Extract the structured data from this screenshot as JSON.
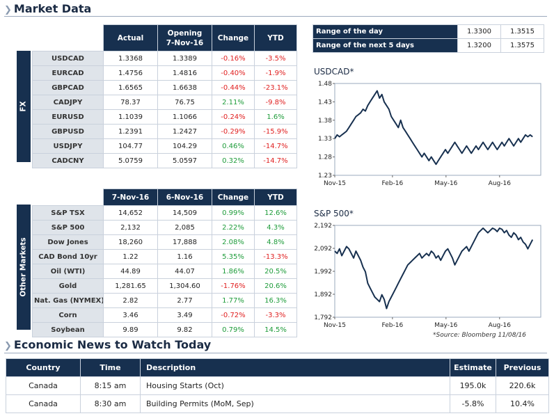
{
  "titles": {
    "market": "Market Data",
    "news": "Economic News to Watch Today"
  },
  "fx": {
    "side_label": "FX",
    "headers": [
      "Actual",
      "Opening 7-Nov-16",
      "Change",
      "YTD"
    ],
    "rows": [
      {
        "name": "USDCAD",
        "actual": "1.3368",
        "opening": "1.3389",
        "change": "-0.16%",
        "ytd": "-3.5%"
      },
      {
        "name": "EURCAD",
        "actual": "1.4756",
        "opening": "1.4816",
        "change": "-0.40%",
        "ytd": "-1.9%"
      },
      {
        "name": "GBPCAD",
        "actual": "1.6565",
        "opening": "1.6638",
        "change": "-0.44%",
        "ytd": "-23.1%"
      },
      {
        "name": "CADJPY",
        "actual": "78.37",
        "opening": "76.75",
        "change": "2.11%",
        "ytd": "-9.8%"
      },
      {
        "name": "EURUSD",
        "actual": "1.1039",
        "opening": "1.1066",
        "change": "-0.24%",
        "ytd": "1.6%"
      },
      {
        "name": "GBPUSD",
        "actual": "1.2391",
        "opening": "1.2427",
        "change": "-0.29%",
        "ytd": "-15.9%"
      },
      {
        "name": "USDJPY",
        "actual": "104.77",
        "opening": "104.29",
        "change": "0.46%",
        "ytd": "-14.7%"
      },
      {
        "name": "CADCNY",
        "actual": "5.0759",
        "opening": "5.0597",
        "change": "0.32%",
        "ytd": "-14.7%"
      }
    ]
  },
  "other": {
    "side_label": "Other Markets",
    "headers": [
      "7-Nov-16",
      "6-Nov-16",
      "Change",
      "YTD"
    ],
    "rows": [
      {
        "name": "S&P TSX",
        "actual": "14,652",
        "opening": "14,509",
        "change": "0.99%",
        "ytd": "12.6%"
      },
      {
        "name": "S&P 500",
        "actual": "2,132",
        "opening": "2,085",
        "change": "2.22%",
        "ytd": "4.3%"
      },
      {
        "name": "Dow Jones",
        "actual": "18,260",
        "opening": "17,888",
        "change": "2.08%",
        "ytd": "4.8%"
      },
      {
        "name": "CAD Bond 10yr",
        "actual": "1.22",
        "opening": "1.16",
        "change": "5.35%",
        "ytd": "-13.3%"
      },
      {
        "name": "Oil (WTI)",
        "actual": "44.89",
        "opening": "44.07",
        "change": "1.86%",
        "ytd": "20.5%"
      },
      {
        "name": "Gold",
        "actual": "1,281.65",
        "opening": "1,304.60",
        "change": "-1.76%",
        "ytd": "20.6%"
      },
      {
        "name": "Nat. Gas (NYMEX)",
        "actual": "2.82",
        "opening": "2.77",
        "change": "1.77%",
        "ytd": "16.3%"
      },
      {
        "name": "Corn",
        "actual": "3.46",
        "opening": "3.49",
        "change": "-0.72%",
        "ytd": "-3.3%"
      },
      {
        "name": "Soybean",
        "actual": "9.89",
        "opening": "9.82",
        "change": "0.79%",
        "ytd": "14.5%"
      }
    ]
  },
  "ranges": [
    {
      "label": "Range of the day",
      "low": "1.3300",
      "high": "1.3515"
    },
    {
      "label": "Range of the next 5 days",
      "low": "1.3200",
      "high": "1.3575"
    }
  ],
  "charts": {
    "usdcad_title": "USDCAD*",
    "sp500_title": "S&P 500*",
    "source": "*Source: Bloomberg  11/08/16"
  },
  "chart_data": [
    {
      "type": "line",
      "title": "USDCAD*",
      "ylim": [
        1.23,
        1.48
      ],
      "yticks": [
        "1.48",
        "1.43",
        "1.38",
        "1.33",
        "1.28",
        "1.23"
      ],
      "xticks": [
        "Nov-15",
        "Feb-16",
        "May-16",
        "Aug-16"
      ],
      "series": [
        {
          "values": [
            1.33,
            1.34,
            1.335,
            1.34,
            1.345,
            1.35,
            1.36,
            1.37,
            1.38,
            1.39,
            1.395,
            1.4,
            1.41,
            1.405,
            1.42,
            1.43,
            1.44,
            1.45,
            1.46,
            1.44,
            1.45,
            1.43,
            1.42,
            1.41,
            1.39,
            1.38,
            1.37,
            1.36,
            1.38,
            1.36,
            1.35,
            1.34,
            1.33,
            1.32,
            1.31,
            1.3,
            1.29,
            1.28,
            1.29,
            1.28,
            1.27,
            1.28,
            1.27,
            1.26,
            1.27,
            1.28,
            1.29,
            1.3,
            1.29,
            1.3,
            1.31,
            1.32,
            1.31,
            1.3,
            1.29,
            1.3,
            1.31,
            1.3,
            1.29,
            1.3,
            1.31,
            1.3,
            1.31,
            1.32,
            1.31,
            1.3,
            1.31,
            1.32,
            1.31,
            1.3,
            1.31,
            1.32,
            1.31,
            1.32,
            1.33,
            1.32,
            1.31,
            1.32,
            1.33,
            1.32,
            1.33,
            1.34,
            1.335,
            1.34,
            1.335
          ]
        }
      ]
    },
    {
      "type": "line",
      "title": "S&P 500*",
      "ylim": [
        1792,
        2192
      ],
      "yticks": [
        "2,192",
        "2,092",
        "1,992",
        "1,892",
        "1,792"
      ],
      "xticks": [
        "Nov-15",
        "Feb-16",
        "May-16",
        "Aug-16"
      ],
      "series": [
        {
          "values": [
            2080,
            2070,
            2090,
            2060,
            2080,
            2100,
            2090,
            2070,
            2050,
            2080,
            2060,
            2040,
            2010,
            1990,
            1940,
            1920,
            1900,
            1880,
            1870,
            1860,
            1890,
            1870,
            1830,
            1860,
            1880,
            1900,
            1920,
            1940,
            1960,
            1980,
            2000,
            2020,
            2030,
            2040,
            2050,
            2060,
            2070,
            2050,
            2060,
            2070,
            2060,
            2080,
            2070,
            2050,
            2060,
            2040,
            2060,
            2080,
            2090,
            2070,
            2050,
            2020,
            2040,
            2060,
            2080,
            2090,
            2100,
            2080,
            2100,
            2120,
            2140,
            2160,
            2170,
            2180,
            2170,
            2160,
            2170,
            2180,
            2175,
            2165,
            2180,
            2175,
            2160,
            2170,
            2150,
            2140,
            2160,
            2150,
            2130,
            2140,
            2120,
            2110,
            2090,
            2110,
            2130
          ]
        }
      ]
    }
  ],
  "news": {
    "headers": [
      "Country",
      "Time",
      "Description",
      "Estimate",
      "Previous"
    ],
    "rows": [
      {
        "country": "Canada",
        "time": "8:15 am",
        "description": "Housing Starts (Oct)",
        "estimate": "195.0k",
        "previous": "220.6k"
      },
      {
        "country": "Canada",
        "time": "8:30 am",
        "description": "Building Permits (MoM, Sep)",
        "estimate": "-5.8%",
        "previous": "10.4%"
      }
    ]
  },
  "colors": {
    "header_bg": "#17304f",
    "label_bg": "#dfe4ea",
    "negative": "#e02020",
    "positive": "#1e9c3a",
    "line": "#17304f"
  }
}
